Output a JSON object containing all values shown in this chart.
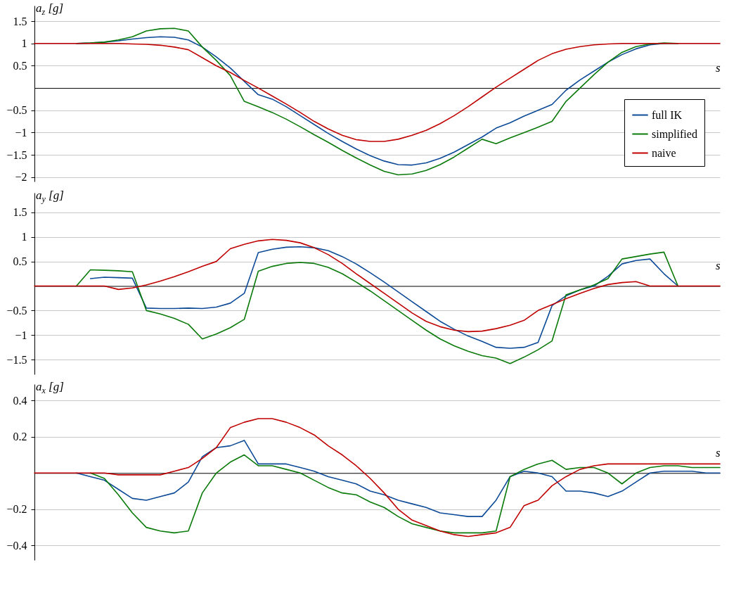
{
  "chart_data": [
    {
      "type": "line",
      "ylabel": "a$_{z}$ [g]",
      "xlabel": "s",
      "legend": "bottom right",
      "grid": "y",
      "tick_labels": "y",
      "categories": [
        null,
        null,
        null,
        null,
        null,
        null,
        null,
        null,
        null,
        null,
        null,
        null,
        null,
        null,
        null,
        null,
        null,
        null,
        null,
        null,
        null,
        null,
        null,
        null,
        null,
        null,
        null,
        null,
        null,
        null,
        null,
        null,
        null,
        null,
        null,
        null,
        null,
        null,
        null,
        null,
        null,
        null,
        null,
        null,
        null,
        null,
        null,
        null,
        null,
        null
      ],
      "ylim": [
        -2.1,
        1.85
      ],
      "yticks": [
        -2,
        -1.5,
        -1,
        -0.5,
        0.5,
        1,
        1.5
      ],
      "series": [
        {
          "name": "full IK",
          "color": "#0c4a97",
          "values": [
            null,
            null,
            null,
            1.0,
            1.01,
            1.03,
            1.06,
            1.1,
            1.13,
            1.15,
            1.14,
            1.08,
            0.92,
            0.7,
            0.45,
            0.15,
            -0.15,
            -0.25,
            -0.42,
            -0.62,
            -0.82,
            -1.02,
            -1.2,
            -1.37,
            -1.52,
            -1.64,
            -1.72,
            -1.73,
            -1.68,
            -1.58,
            -1.44,
            -1.27,
            -1.1,
            -0.9,
            -0.78,
            -0.63,
            -0.5,
            -0.37,
            -0.05,
            0.18,
            0.38,
            0.58,
            0.75,
            0.88,
            0.97,
            1.0,
            1.0,
            null,
            null,
            null
          ]
        },
        {
          "name": "simplified",
          "color": "#0a7a0a",
          "values": [
            null,
            null,
            null,
            1,
            1.01,
            1.03,
            1.08,
            1.15,
            1.28,
            1.33,
            1.34,
            1.28,
            0.92,
            0.62,
            0.28,
            -0.3,
            -0.42,
            -0.55,
            -0.7,
            -0.87,
            -1.05,
            -1.22,
            -1.4,
            -1.57,
            -1.73,
            -1.87,
            -1.95,
            -1.93,
            -1.85,
            -1.72,
            -1.55,
            -1.35,
            -1.15,
            -1.25,
            -1.12,
            -1.0,
            -0.88,
            -0.75,
            -0.3,
            0,
            0.3,
            0.58,
            0.8,
            0.93,
            0.99,
            1.01,
            1,
            null,
            null,
            null
          ]
        },
        {
          "name": "naive",
          "color": "#c00000",
          "values": [
            1,
            1,
            1,
            1,
            1,
            1,
            1,
            0.99,
            0.98,
            0.96,
            0.92,
            0.86,
            0.68,
            0.5,
            0.35,
            0.17,
            0,
            -0.18,
            -0.36,
            -0.55,
            -0.75,
            -0.92,
            -1.06,
            -1.16,
            -1.2,
            -1.2,
            -1.15,
            -1.06,
            -0.95,
            -0.8,
            -0.62,
            -0.42,
            -0.2,
            0.02,
            0.22,
            0.42,
            0.62,
            0.77,
            0.87,
            0.93,
            0.97,
            0.99,
            1,
            1,
            1,
            1,
            1,
            1,
            1,
            1
          ]
        }
      ]
    },
    {
      "type": "line",
      "ylabel": "a$_{y}$ [g]",
      "xlabel": "s",
      "grid": "y",
      "tick_labels": "y",
      "categories": [
        null,
        null,
        null,
        null,
        null,
        null,
        null,
        null,
        null,
        null,
        null,
        null,
        null,
        null,
        null,
        null,
        null,
        null,
        null,
        null,
        null,
        null,
        null,
        null,
        null,
        null,
        null,
        null,
        null,
        null,
        null,
        null,
        null,
        null,
        null,
        null,
        null,
        null,
        null,
        null,
        null,
        null,
        null,
        null,
        null,
        null,
        null,
        null,
        null,
        null
      ],
      "ylim": [
        -1.8,
        1.9
      ],
      "yticks": [
        -1.5,
        -1,
        -0.5,
        0.5,
        1,
        1.5
      ],
      "series": [
        {
          "color": "#0c4a97",
          "values": [
            null,
            null,
            null,
            null,
            0.15,
            0.18,
            0.17,
            0.16,
            -0.45,
            -0.46,
            -0.46,
            -0.45,
            -0.46,
            -0.43,
            -0.35,
            -0.15,
            0.68,
            0.75,
            0.79,
            0.8,
            0.78,
            0.72,
            0.6,
            0.45,
            0.27,
            0.08,
            -0.12,
            -0.32,
            -0.52,
            -0.72,
            -0.88,
            -1.02,
            -1.13,
            -1.25,
            -1.27,
            -1.25,
            -1.15,
            -0.4,
            -0.2,
            -0.08,
            0,
            0.2,
            0.45,
            0.52,
            0.55,
            0.25,
            0,
            null,
            null,
            null
          ]
        },
        {
          "color": "#0a7a0a",
          "values": [
            null,
            null,
            null,
            0,
            0.33,
            0.32,
            0.31,
            0.29,
            -0.5,
            -0.57,
            -0.66,
            -0.78,
            -1.08,
            -0.98,
            -0.85,
            -0.68,
            0.3,
            0.4,
            0.46,
            0.48,
            0.46,
            0.38,
            0.25,
            0.08,
            -0.1,
            -0.3,
            -0.5,
            -0.7,
            -0.9,
            -1.08,
            -1.22,
            -1.33,
            -1.42,
            -1.47,
            -1.58,
            -1.45,
            -1.3,
            -1.12,
            -0.18,
            -0.08,
            0.02,
            0.15,
            0.55,
            0.6,
            0.65,
            0.69,
            0,
            null,
            null,
            null
          ]
        },
        {
          "color": "#c00000",
          "values": [
            0,
            0,
            0,
            0,
            0,
            0,
            -0.07,
            -0.04,
            0.02,
            0.1,
            0.19,
            0.29,
            0.4,
            0.5,
            0.76,
            0.85,
            0.92,
            0.95,
            0.93,
            0.88,
            0.78,
            0.64,
            0.46,
            0.25,
            0.05,
            -0.15,
            -0.35,
            -0.55,
            -0.72,
            -0.83,
            -0.9,
            -0.93,
            -0.92,
            -0.87,
            -0.8,
            -0.7,
            -0.5,
            -0.38,
            -0.26,
            -0.15,
            -0.05,
            0.03,
            0.07,
            0.09,
            0,
            0,
            0,
            0,
            0,
            0
          ]
        }
      ]
    },
    {
      "type": "line",
      "ylabel": "a$_{x}$ [g]",
      "xlabel": "s",
      "grid": "y",
      "tick_labels": "y",
      "categories": [
        null,
        null,
        null,
        null,
        null,
        null,
        null,
        null,
        null,
        null,
        null,
        null,
        null,
        null,
        null,
        null,
        null,
        null,
        null,
        null,
        null,
        null,
        null,
        null,
        null,
        null,
        null,
        null,
        null,
        null,
        null,
        null,
        null,
        null,
        null,
        null,
        null,
        null,
        null,
        null,
        null,
        null,
        null,
        null,
        null,
        null,
        null,
        null,
        null,
        null
      ],
      "ylim": [
        -0.48,
        0.49
      ],
      "yticks": [
        -0.4,
        -0.2,
        0.2,
        0.4
      ],
      "series": [
        {
          "color": "#0c4a97",
          "values": [
            null,
            null,
            null,
            0,
            -0.02,
            -0.04,
            -0.09,
            -0.14,
            -0.15,
            -0.13,
            -0.11,
            -0.05,
            0.09,
            0.14,
            0.15,
            0.18,
            0.05,
            0.05,
            0.05,
            0.03,
            0.01,
            -0.02,
            -0.04,
            -0.06,
            -0.1,
            -0.12,
            -0.15,
            -0.17,
            -0.19,
            -0.22,
            -0.23,
            -0.24,
            -0.24,
            -0.15,
            -0.02,
            0.01,
            0,
            -0.02,
            -0.1,
            -0.1,
            -0.11,
            -0.13,
            -0.1,
            -0.05,
            0,
            0.01,
            0.01,
            0.01,
            0,
            0
          ]
        },
        {
          "color": "#0a7a0a",
          "values": [
            null,
            null,
            null,
            null,
            0,
            -0.03,
            -0.12,
            -0.22,
            -0.3,
            -0.32,
            -0.33,
            -0.32,
            -0.11,
            0,
            0.06,
            0.1,
            0.04,
            0.04,
            0.02,
            0,
            -0.04,
            -0.08,
            -0.11,
            -0.12,
            -0.16,
            -0.19,
            -0.24,
            -0.28,
            -0.3,
            -0.32,
            -0.33,
            -0.33,
            -0.33,
            -0.32,
            -0.02,
            0.02,
            0.05,
            0.07,
            0.02,
            0.03,
            0.03,
            0,
            -0.06,
            0,
            0.03,
            0.04,
            0.04,
            0.03,
            0.03,
            0.03
          ]
        },
        {
          "color": "#c00000",
          "values": [
            0,
            0,
            0,
            0,
            0,
            0,
            -0.01,
            -0.01,
            -0.01,
            -0.01,
            0.01,
            0.03,
            0.08,
            0.14,
            0.25,
            0.28,
            0.3,
            0.3,
            0.28,
            0.25,
            0.21,
            0.15,
            0.1,
            0.04,
            -0.03,
            -0.11,
            -0.2,
            -0.26,
            -0.29,
            -0.32,
            -0.34,
            -0.35,
            -0.34,
            -0.33,
            -0.3,
            -0.18,
            -0.15,
            -0.07,
            -0.02,
            0.02,
            0.04,
            0.05,
            0.05,
            0.05,
            0.05,
            0.05,
            0.05,
            0.05,
            0.05,
            0.05
          ]
        }
      ]
    }
  ]
}
